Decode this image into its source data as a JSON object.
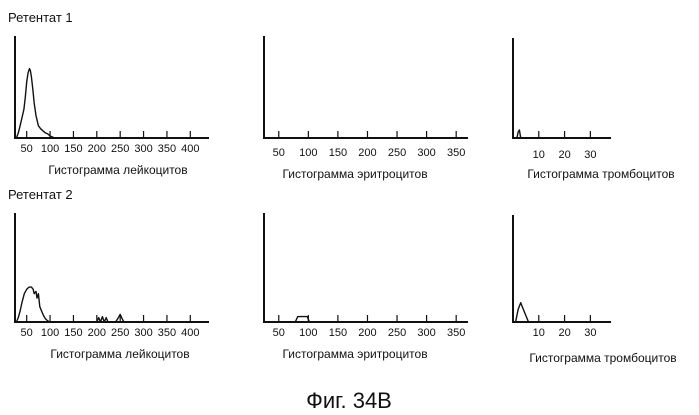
{
  "figure": {
    "caption": "Фиг. 34B"
  },
  "rows": [
    {
      "title": "Ретентат 1"
    },
    {
      "title": "Ретентат 2"
    }
  ],
  "chart_data": [
    {
      "type": "line",
      "title": "Ретентат 1",
      "xlabel": "Гистограмма лейкоцитов",
      "xticks": [
        50,
        100,
        150,
        200,
        250,
        300,
        350,
        400
      ],
      "xlim": [
        25,
        440
      ],
      "ylim": [
        0,
        1
      ],
      "grid": false,
      "series": [
        {
          "x": [
            28,
            32,
            36,
            40,
            44,
            47,
            50,
            53,
            56,
            58,
            60,
            63,
            66,
            70,
            75,
            80,
            85,
            90,
            95,
            100,
            105,
            110
          ],
          "y": [
            0.0,
            0.05,
            0.12,
            0.2,
            0.28,
            0.4,
            0.55,
            0.64,
            0.68,
            0.66,
            0.6,
            0.48,
            0.34,
            0.22,
            0.12,
            0.09,
            0.07,
            0.05,
            0.04,
            0.02,
            0.01,
            0.0
          ]
        }
      ]
    },
    {
      "type": "line",
      "title": "",
      "xlabel": "Гистограмма эритроцитов",
      "xticks": [
        50,
        100,
        150,
        200,
        250,
        300,
        350
      ],
      "xlim": [
        25,
        370
      ],
      "ylim": [
        0,
        1
      ],
      "grid": false,
      "series": [
        {
          "x": [
            25,
            370
          ],
          "y": [
            0,
            0
          ]
        }
      ]
    },
    {
      "type": "line",
      "title": "",
      "xlabel": "Гистограмма тромбоцитов",
      "xticks": [
        10,
        20,
        30
      ],
      "xlim": [
        0,
        38
      ],
      "ylim": [
        0,
        1
      ],
      "grid": false,
      "series": [
        {
          "x": [
            0,
            1.5,
            2,
            2.5,
            3,
            38
          ],
          "y": [
            0,
            0,
            0.06,
            0.08,
            0,
            0
          ]
        }
      ]
    },
    {
      "type": "line",
      "title": "Ретентат 2",
      "xlabel": "Гистограмма лейкоцитов",
      "xticks": [
        50,
        100,
        150,
        200,
        250,
        300,
        350,
        400
      ],
      "xlim": [
        25,
        440
      ],
      "ylim": [
        0,
        1
      ],
      "grid": false,
      "series": [
        {
          "x": [
            28,
            32,
            36,
            40,
            45,
            50,
            55,
            60,
            64,
            66,
            70,
            72,
            75,
            78,
            82,
            86,
            90,
            95,
            100,
            200,
            204,
            208,
            212,
            216,
            220,
            224,
            228,
            240,
            245,
            250,
            254,
            258,
            262,
            440
          ],
          "y": [
            0.0,
            0.04,
            0.1,
            0.18,
            0.26,
            0.3,
            0.32,
            0.32,
            0.3,
            0.26,
            0.28,
            0.22,
            0.26,
            0.14,
            0.1,
            0.06,
            0.03,
            0.01,
            0.0,
            0.0,
            0.04,
            0.0,
            0.05,
            0.0,
            0.04,
            0.0,
            0.0,
            0.0,
            0.03,
            0.07,
            0.03,
            0.0,
            0.0,
            0.0
          ]
        }
      ]
    },
    {
      "type": "line",
      "title": "",
      "xlabel": "Гистограмма эритроцитов",
      "xticks": [
        50,
        100,
        150,
        200,
        250,
        300,
        350
      ],
      "xlim": [
        25,
        370
      ],
      "ylim": [
        0,
        1
      ],
      "grid": false,
      "series": [
        {
          "x": [
            25,
            78,
            82,
            86,
            98,
            102,
            370
          ],
          "y": [
            0,
            0,
            0.05,
            0.05,
            0.05,
            0,
            0
          ]
        }
      ]
    },
    {
      "type": "line",
      "title": "",
      "xlabel": "Гистограмма тромбоцитов",
      "xticks": [
        10,
        20,
        30
      ],
      "xlim": [
        0,
        38
      ],
      "ylim": [
        0,
        1
      ],
      "grid": false,
      "series": [
        {
          "x": [
            0,
            1,
            2,
            3,
            4,
            5,
            6,
            38
          ],
          "y": [
            0,
            0,
            0.12,
            0.18,
            0.12,
            0.06,
            0.0,
            0
          ]
        }
      ]
    }
  ]
}
